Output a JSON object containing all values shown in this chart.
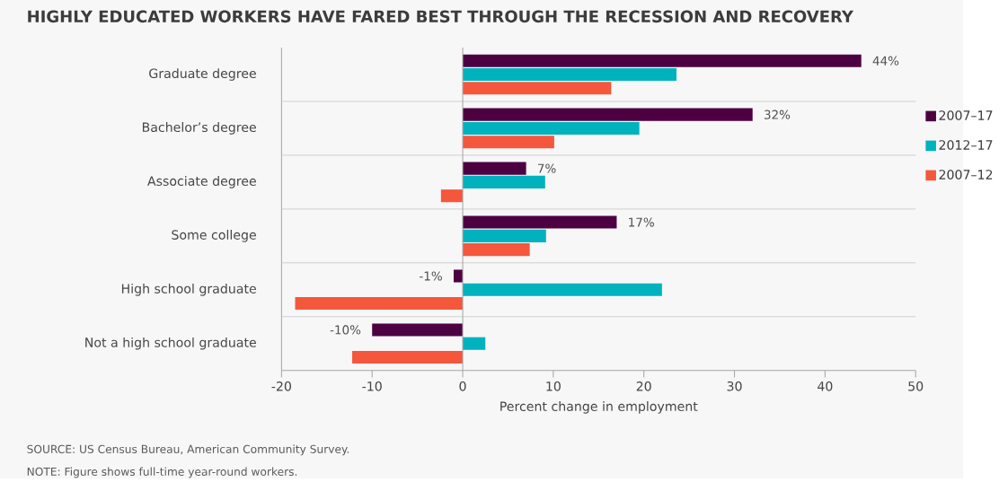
{
  "chart_data": {
    "type": "bar",
    "orientation": "horizontal",
    "title": "HIGHLY EDUCATED WORKERS HAVE FARED BEST THROUGH THE RECESSION AND RECOVERY",
    "xlabel": "Percent change in employment",
    "categories": [
      "Graduate degree",
      "Bachelor’s degree",
      "Associate degree",
      "Some college",
      "High school graduate",
      "Not a high school graduate"
    ],
    "series": [
      {
        "name": "2007–17",
        "color": "#4d0041",
        "values": [
          44,
          32,
          7,
          17,
          -1,
          -10
        ],
        "value_labels": [
          "44%",
          "32%",
          "7%",
          "17%",
          "-1%",
          "-10%"
        ]
      },
      {
        "name": "2012–17",
        "color": "#00b2bd",
        "values": [
          23.6,
          19.5,
          9.1,
          9.2,
          22.0,
          2.5
        ]
      },
      {
        "name": "2007–12",
        "color": "#f4573c",
        "values": [
          16.4,
          10.1,
          -2.4,
          7.4,
          -18.5,
          -12.2
        ]
      }
    ],
    "xlim": [
      -20,
      50
    ],
    "xticks": [
      -20,
      -10,
      0,
      10,
      20,
      30,
      40,
      50
    ],
    "grid": "y",
    "legend": "right",
    "annotations": [
      "SOURCE: US Census Bureau, American Community Survey.",
      "NOTE: Figure shows full-time year-round workers."
    ]
  }
}
